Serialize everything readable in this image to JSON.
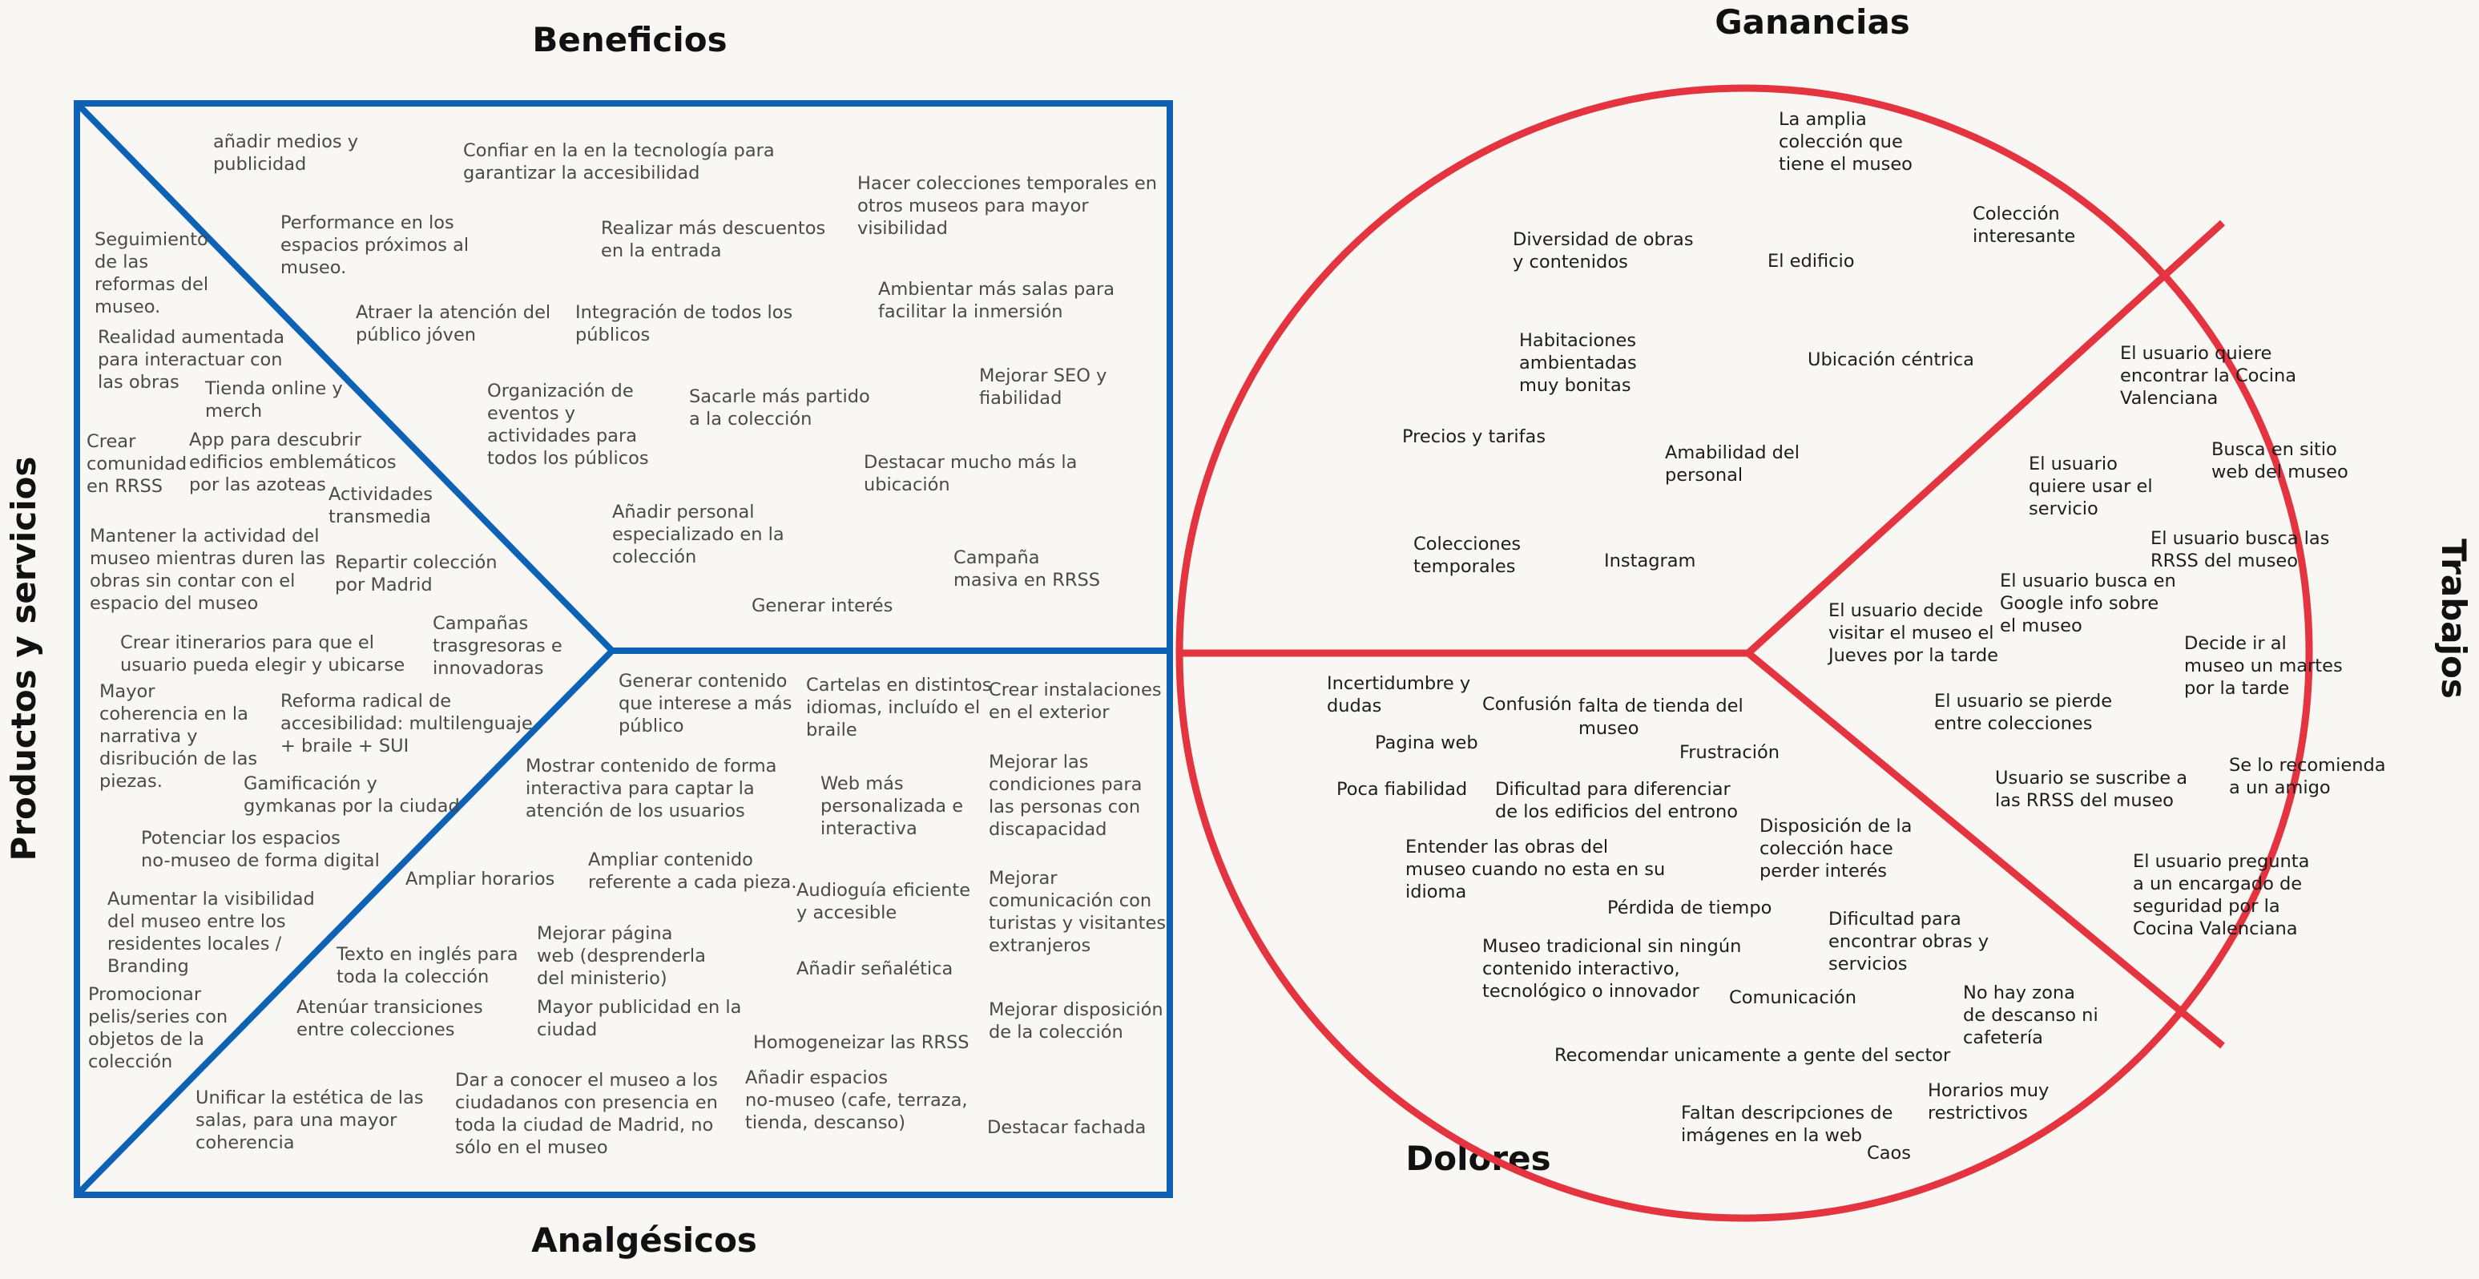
{
  "colors": {
    "square": "#0d62b5",
    "circle": "#e3343f",
    "background": "#f8f7f3"
  },
  "labels": {
    "beneficios": "Beneficios",
    "analgesicos": "Analgésicos",
    "productos": "Productos y servicios",
    "ganancias": "Ganancias",
    "trabajos": "Trabajos",
    "dolores": "Dolores"
  },
  "beneficios_notes": [
    [
      "añadir medios y",
      "publicidad"
    ],
    [
      "Confiar en la en la tecnología para",
      "garantizar la accesibilidad"
    ],
    [
      "Hacer colecciones temporales en",
      "otros museos para mayor",
      "visibilidad"
    ],
    [
      "Performance en los",
      "espacios próximos al",
      "museo."
    ],
    [
      "Realizar más descuentos",
      "en la entrada"
    ],
    [
      "Ambientar más salas para",
      "facilitar la inmersión"
    ],
    [
      "Atraer la atención del",
      "público jóven"
    ],
    [
      "Integración de todos los",
      "públicos"
    ],
    [
      "Mejorar SEO y",
      "fiabilidad"
    ],
    [
      "Organización de",
      "eventos y",
      "actividades para",
      "todos los públicos"
    ],
    [
      "Sacarle más partido",
      "a la colección"
    ],
    [
      "Destacar mucho más la",
      "ubicación"
    ],
    [
      "Añadir personal",
      "especializado en la",
      "colección"
    ],
    [
      "Campaña",
      "masiva en RRSS"
    ],
    [
      "Generar interés"
    ]
  ],
  "productos_notes": [
    [
      "Seguimiento",
      "de las",
      "reformas del",
      "museo."
    ],
    [
      "Realidad aumentada",
      "para interactuar con",
      "las obras"
    ],
    [
      "Tienda online y",
      "merch"
    ],
    [
      "Crear",
      "comunidad",
      "en RRSS"
    ],
    [
      "App para descubrir",
      "edificios emblemáticos",
      "por las azoteas"
    ],
    [
      "Actividades",
      "transmedia"
    ],
    [
      "Mantener la actividad del",
      "museo mientras duren las",
      "obras sin contar con el",
      "espacio del museo"
    ],
    [
      "Repartir colección",
      "por Madrid"
    ],
    [
      "Campañas",
      "trasgresoras e",
      "innovadoras"
    ],
    [
      "Crear itinerarios para que el",
      "usuario pueda elegir y ubicarse"
    ],
    [
      "Mayor",
      "coherencia en la",
      "narrativa y",
      "disribución de las",
      "piezas."
    ],
    [
      "Reforma radical de",
      "accesibilidad: multilenguaje",
      "+ braile + SUI"
    ],
    [
      "Gamificación y",
      "gymkanas por la ciudad"
    ],
    [
      "Potenciar los espacios",
      "no-museo de forma digital"
    ],
    [
      "Aumentar la visibilidad",
      "del museo entre los",
      "residentes locales /",
      "Branding"
    ],
    [
      "Promocionar",
      "pelis/series con",
      "objetos de la",
      "colección"
    ],
    [
      "Unificar la estética de las",
      "salas, para una mayor",
      "coherencia"
    ]
  ],
  "analgesicos_notes": [
    [
      "Generar contenido",
      "que interese a más",
      "público"
    ],
    [
      "Cartelas en distintos",
      "idiomas, incluído el",
      "braile"
    ],
    [
      "Crear instalaciones",
      "en el exterior"
    ],
    [
      "Mostrar contenido de forma",
      "interactiva para captar la",
      "atención de los usuarios"
    ],
    [
      "Web más",
      "personalizada e",
      "interactiva"
    ],
    [
      "Mejorar las",
      "condiciones para",
      "las personas con",
      "discapacidad"
    ],
    [
      "Ampliar horarios"
    ],
    [
      "Ampliar contenido",
      "referente a cada pieza."
    ],
    [
      "Audioguía eficiente",
      "y accesible"
    ],
    [
      "Mejorar",
      "comunicación con",
      "turistas y visitantes",
      "extranjeros"
    ],
    [
      "Mejorar página",
      "web (desprenderla",
      "del ministerio)"
    ],
    [
      "Texto en inglés para",
      "toda la colección"
    ],
    [
      "Añadir señalética"
    ],
    [
      "Atenúar transiciones",
      "entre colecciones"
    ],
    [
      "Mayor publicidad en la",
      "ciudad"
    ],
    [
      "Mejorar disposición",
      "de la colección"
    ],
    [
      "Homogeneizar las RRSS"
    ],
    [
      "Dar a conocer el museo a los",
      "ciudadanos con presencia en",
      "toda la ciudad de Madrid, no",
      "sólo en el museo"
    ],
    [
      "Añadir espacios",
      "no-museo (cafe, terraza,",
      "tienda, descanso)"
    ],
    [
      "Destacar fachada"
    ]
  ],
  "ganancias_notes": [
    [
      "La amplia",
      "colección que",
      "tiene el museo"
    ],
    [
      "Colección",
      "interesante"
    ],
    [
      "Diversidad de obras",
      "y contenidos"
    ],
    [
      "El edificio"
    ],
    [
      "Habitaciones",
      "ambientadas",
      "muy bonitas"
    ],
    [
      "Ubicación céntrica"
    ],
    [
      "Precios y tarifas"
    ],
    [
      "Amabilidad del",
      "personal"
    ],
    [
      "Colecciones",
      "temporales"
    ],
    [
      "Instagram"
    ]
  ],
  "trabajos_notes": [
    [
      "El usuario quiere",
      "encontrar la Cocina",
      "Valenciana"
    ],
    [
      "El usuario",
      "quiere usar el",
      "servicio"
    ],
    [
      "Busca en sitio",
      "web del museo"
    ],
    [
      "El usuario busca las",
      "RRSS del museo"
    ],
    [
      "El usuario busca en",
      "Google info sobre",
      "el museo"
    ],
    [
      "El usuario decide",
      "visitar el museo el",
      "Jueves por la tarde"
    ],
    [
      "Decide ir al",
      "museo un martes",
      "por la tarde"
    ],
    [
      "El usuario se pierde",
      "entre colecciones"
    ],
    [
      "Se lo recomienda",
      "a un amigo"
    ],
    [
      "Usuario se suscribe a",
      "las RRSS del museo"
    ],
    [
      "El usuario pregunta",
      "a un encargado de",
      "seguridad por la",
      "Cocina Valenciana"
    ]
  ],
  "dolores_notes": [
    [
      "Incertidumbre y",
      "dudas"
    ],
    [
      "Confusión"
    ],
    [
      "falta de tienda del",
      "museo"
    ],
    [
      "Pagina web"
    ],
    [
      "Frustración"
    ],
    [
      "Poca fiabilidad"
    ],
    [
      "Dificultad para diferenciar",
      "de los edificios del entrono"
    ],
    [
      "Disposición de la",
      "colección hace",
      "perder interés"
    ],
    [
      "Entender las obras del",
      "museo cuando no esta en su",
      "idioma"
    ],
    [
      "Pérdida de tiempo"
    ],
    [
      "Dificultad para",
      "encontrar obras y",
      "servicios"
    ],
    [
      "Museo tradicional sin ningún",
      "contenido interactivo,",
      "tecnológico o innovador"
    ],
    [
      "Comunicación"
    ],
    [
      "No hay zona",
      "de descanso ni",
      "cafetería"
    ],
    [
      "Recomendar unicamente a gente del sector"
    ],
    [
      "Horarios muy",
      "restrictivos"
    ],
    [
      "Faltan descripciones de",
      "imágenes en la web"
    ],
    [
      "Caos"
    ]
  ]
}
